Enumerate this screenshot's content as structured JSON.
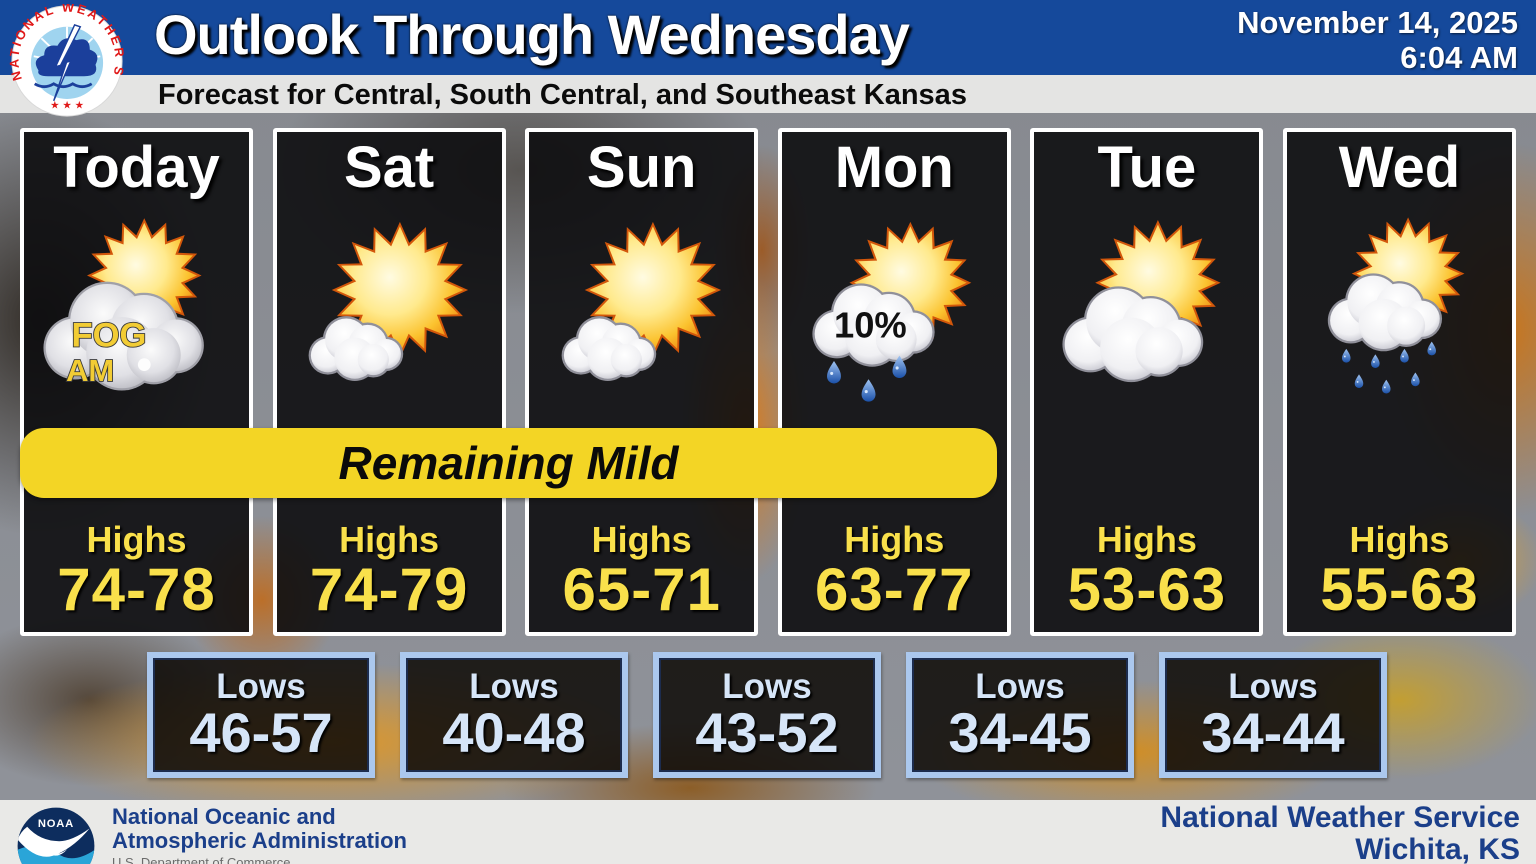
{
  "header": {
    "title": "Outlook Through Wednesday",
    "date": "November 14, 2025",
    "time": "6:04 AM",
    "subtitle": "Forecast for Central, South Central, and Southeast Kansas",
    "nws_ring_text": "NATIONAL WEATHER SERVICE",
    "colors": {
      "header_blue": "#15499b",
      "subtitle_gray": "#e4e4e3"
    }
  },
  "banner": {
    "text": "Remaining Mild",
    "color": "#f3d525"
  },
  "labels": {
    "highs": "Highs",
    "lows": "Lows"
  },
  "days": [
    {
      "name": "Today",
      "icon": "fog-sun",
      "icon_labels": [
        "FOG",
        "AM"
      ],
      "highs": "74-78"
    },
    {
      "name": "Sat",
      "icon": "mostly-sunny",
      "icon_labels": [],
      "highs": "74-79"
    },
    {
      "name": "Sun",
      "icon": "mostly-sunny",
      "icon_labels": [],
      "highs": "65-71"
    },
    {
      "name": "Mon",
      "icon": "sun-rain-chance",
      "icon_labels": [
        "10%"
      ],
      "highs": "63-77"
    },
    {
      "name": "Tue",
      "icon": "mostly-cloudy",
      "icon_labels": [],
      "highs": "53-63"
    },
    {
      "name": "Wed",
      "icon": "sun-rain",
      "icon_labels": [],
      "highs": "55-63"
    }
  ],
  "lows": {
    "values": [
      "46-57",
      "40-48",
      "43-52",
      "34-45",
      "34-44"
    ]
  },
  "footer": {
    "noaa_logo_text": "NOAA",
    "noaa_line1": "National Oceanic and",
    "noaa_line2": "Atmospheric Administration",
    "dept_line": "U.S. Department of Commerce",
    "office_line1": "National Weather Service",
    "office_line2": "Wichita, KS"
  },
  "style_colors": {
    "highs_yellow": "#f9e04b",
    "lows_blue": "#d6e5f8",
    "footer_blue": "#1b3f8a"
  }
}
